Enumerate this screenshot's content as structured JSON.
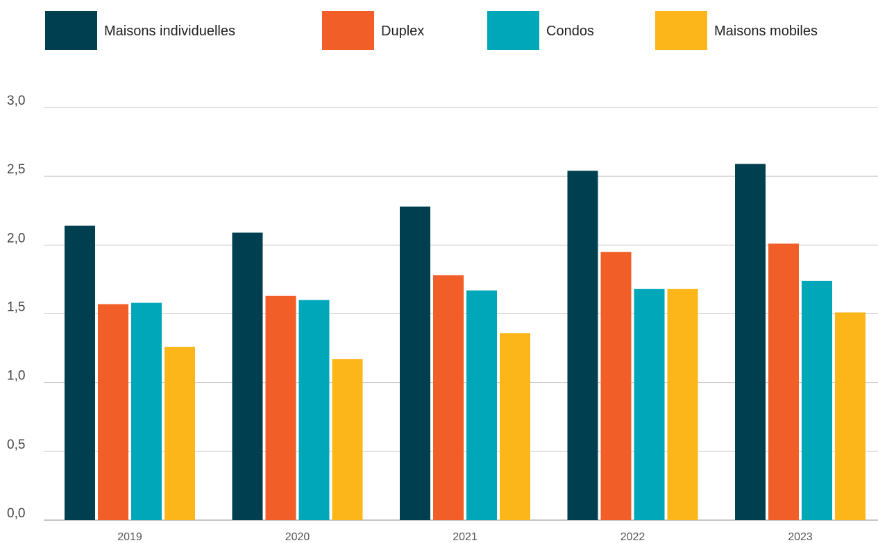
{
  "chart_data": {
    "type": "bar",
    "categories": [
      "2019",
      "2020",
      "2021",
      "2022",
      "2023"
    ],
    "series": [
      {
        "name": "Maisons individuelles",
        "color": "#003f50",
        "values": [
          2.14,
          2.09,
          2.28,
          2.54,
          2.59
        ]
      },
      {
        "name": "Duplex",
        "color": "#f15e27",
        "values": [
          1.57,
          1.63,
          1.78,
          1.95,
          2.01
        ]
      },
      {
        "name": "Condos",
        "color": "#00a7b8",
        "values": [
          1.58,
          1.6,
          1.67,
          1.68,
          1.74
        ]
      },
      {
        "name": "Maisons mobiles",
        "color": "#fdb61a",
        "values": [
          1.26,
          1.17,
          1.36,
          1.68,
          1.51
        ]
      }
    ],
    "title": "",
    "xlabel": "",
    "ylabel": "",
    "ylim": [
      0,
      3
    ],
    "yticks": [
      "0,0",
      "0,5",
      "1,0",
      "1,5",
      "2,0",
      "2,5",
      "3,0"
    ],
    "grid": true,
    "legend_position": "top"
  }
}
